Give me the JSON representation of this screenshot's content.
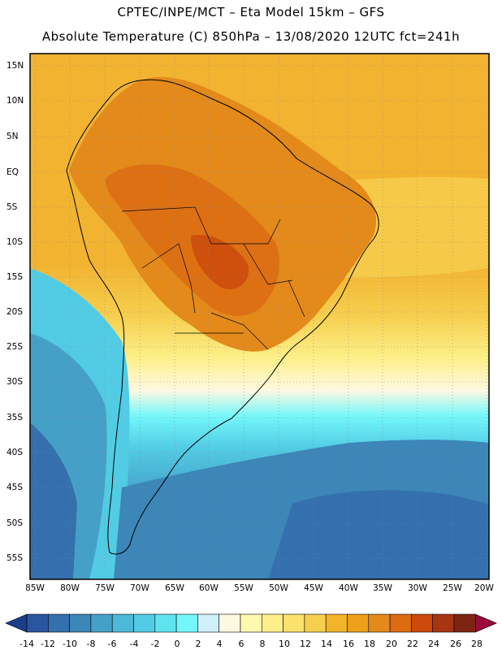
{
  "header": {
    "line1": "CPTEC/INPE/MCT –  Eta Model 15km – GFS",
    "line2": "Absolute Temperature (C) 850hPa – 13/08/2020 12UTC fct=241h"
  },
  "axes": {
    "lat_labels": [
      "15N",
      "10N",
      "5N",
      "EQ",
      "5S",
      "10S",
      "15S",
      "20S",
      "25S",
      "30S",
      "35S",
      "40S",
      "45S",
      "50S",
      "55S"
    ],
    "lon_labels": [
      "85W",
      "80W",
      "75W",
      "70W",
      "65W",
      "60W",
      "55W",
      "50W",
      "45W",
      "40W",
      "35W",
      "30W",
      "25W",
      "20W"
    ]
  },
  "colorbar": {
    "ticks": [
      "-14",
      "-12",
      "-10",
      "-8",
      "-6",
      "-4",
      "-2",
      "0",
      "2",
      "4",
      "6",
      "8",
      "10",
      "12",
      "14",
      "16",
      "18",
      "20",
      "22",
      "24",
      "26",
      "28"
    ],
    "colors": [
      "#1a3d8c",
      "#2a56a0",
      "#3470ae",
      "#3c86b8",
      "#45a0c8",
      "#4db9d8",
      "#52cce4",
      "#5ee3ef",
      "#74f7fb",
      "#cfeffb",
      "#fff8e1",
      "#fff9b0",
      "#fdf08a",
      "#fbe26c",
      "#f6cf4f",
      "#f2b52a",
      "#eda01a",
      "#e38a1b",
      "#dc6b12",
      "#cb4a0c",
      "#a83512",
      "#7d2412",
      "#9a0a3a"
    ]
  },
  "map": {
    "ocean_color": "#f2b330",
    "land_warm_color": "#e38a1b",
    "land_hot_color": "#dc6b12"
  }
}
